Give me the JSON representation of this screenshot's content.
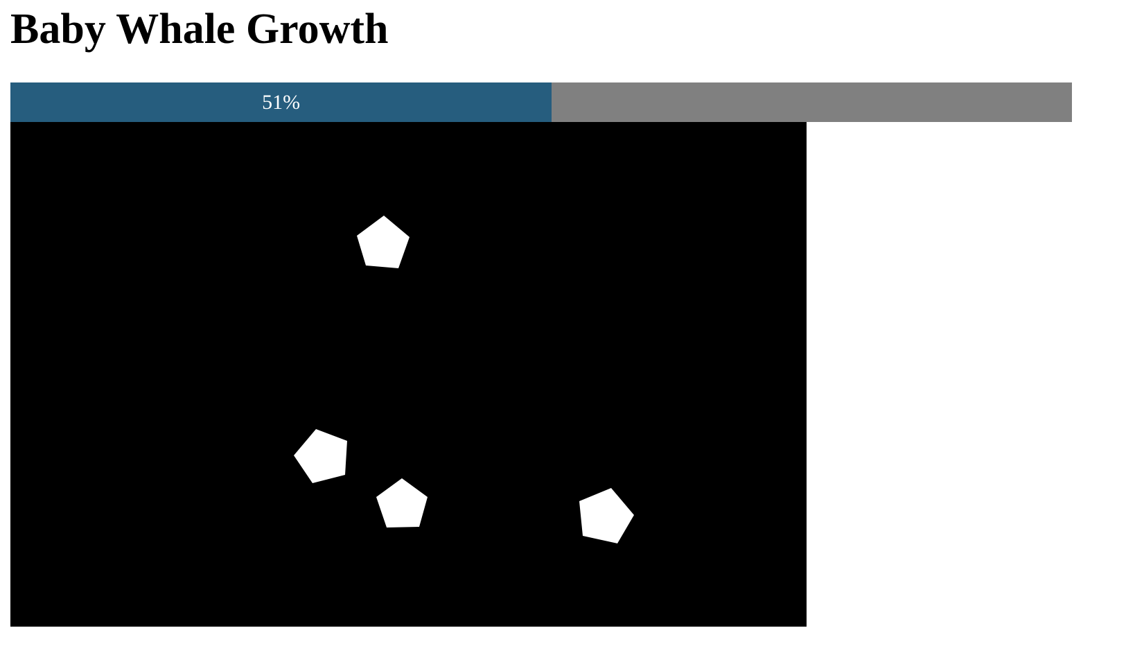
{
  "title": "Baby Whale Growth",
  "progress": {
    "value": 0.51,
    "label": "51%",
    "fill_color": "#265d7e",
    "track_color": "#808080"
  },
  "game": {
    "background_color": "#000000",
    "shape_color": "#ffffff",
    "shape_type": "pentagon",
    "shape_count": 4
  }
}
